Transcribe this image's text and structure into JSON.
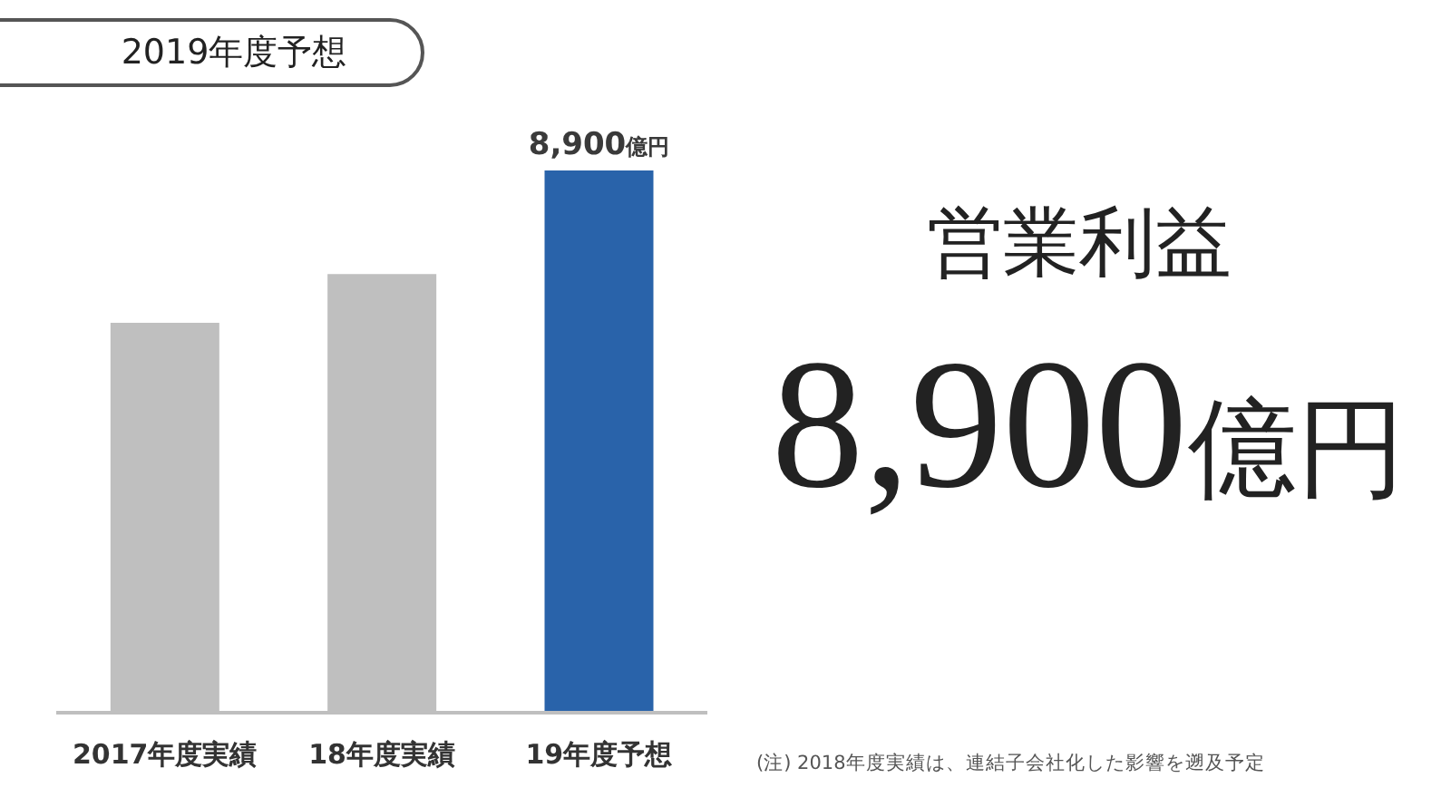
{
  "chart_data": {
    "type": "bar",
    "title": "2019年度予想",
    "categories": [
      "2017年度実績",
      "18年度実績",
      "19年度予想"
    ],
    "values": [
      6400,
      7200,
      8900
    ],
    "colors": [
      "#bfbfbf",
      "#bfbfbf",
      "#2963aa"
    ],
    "value_labels": [
      null,
      null,
      "8,900億円"
    ],
    "tick_labels": "x",
    "annotations": [
      "営業利益",
      "8,900億円",
      "(注) 2018年度実績は、連結子会社化した影響を遡及予定"
    ]
  }
}
